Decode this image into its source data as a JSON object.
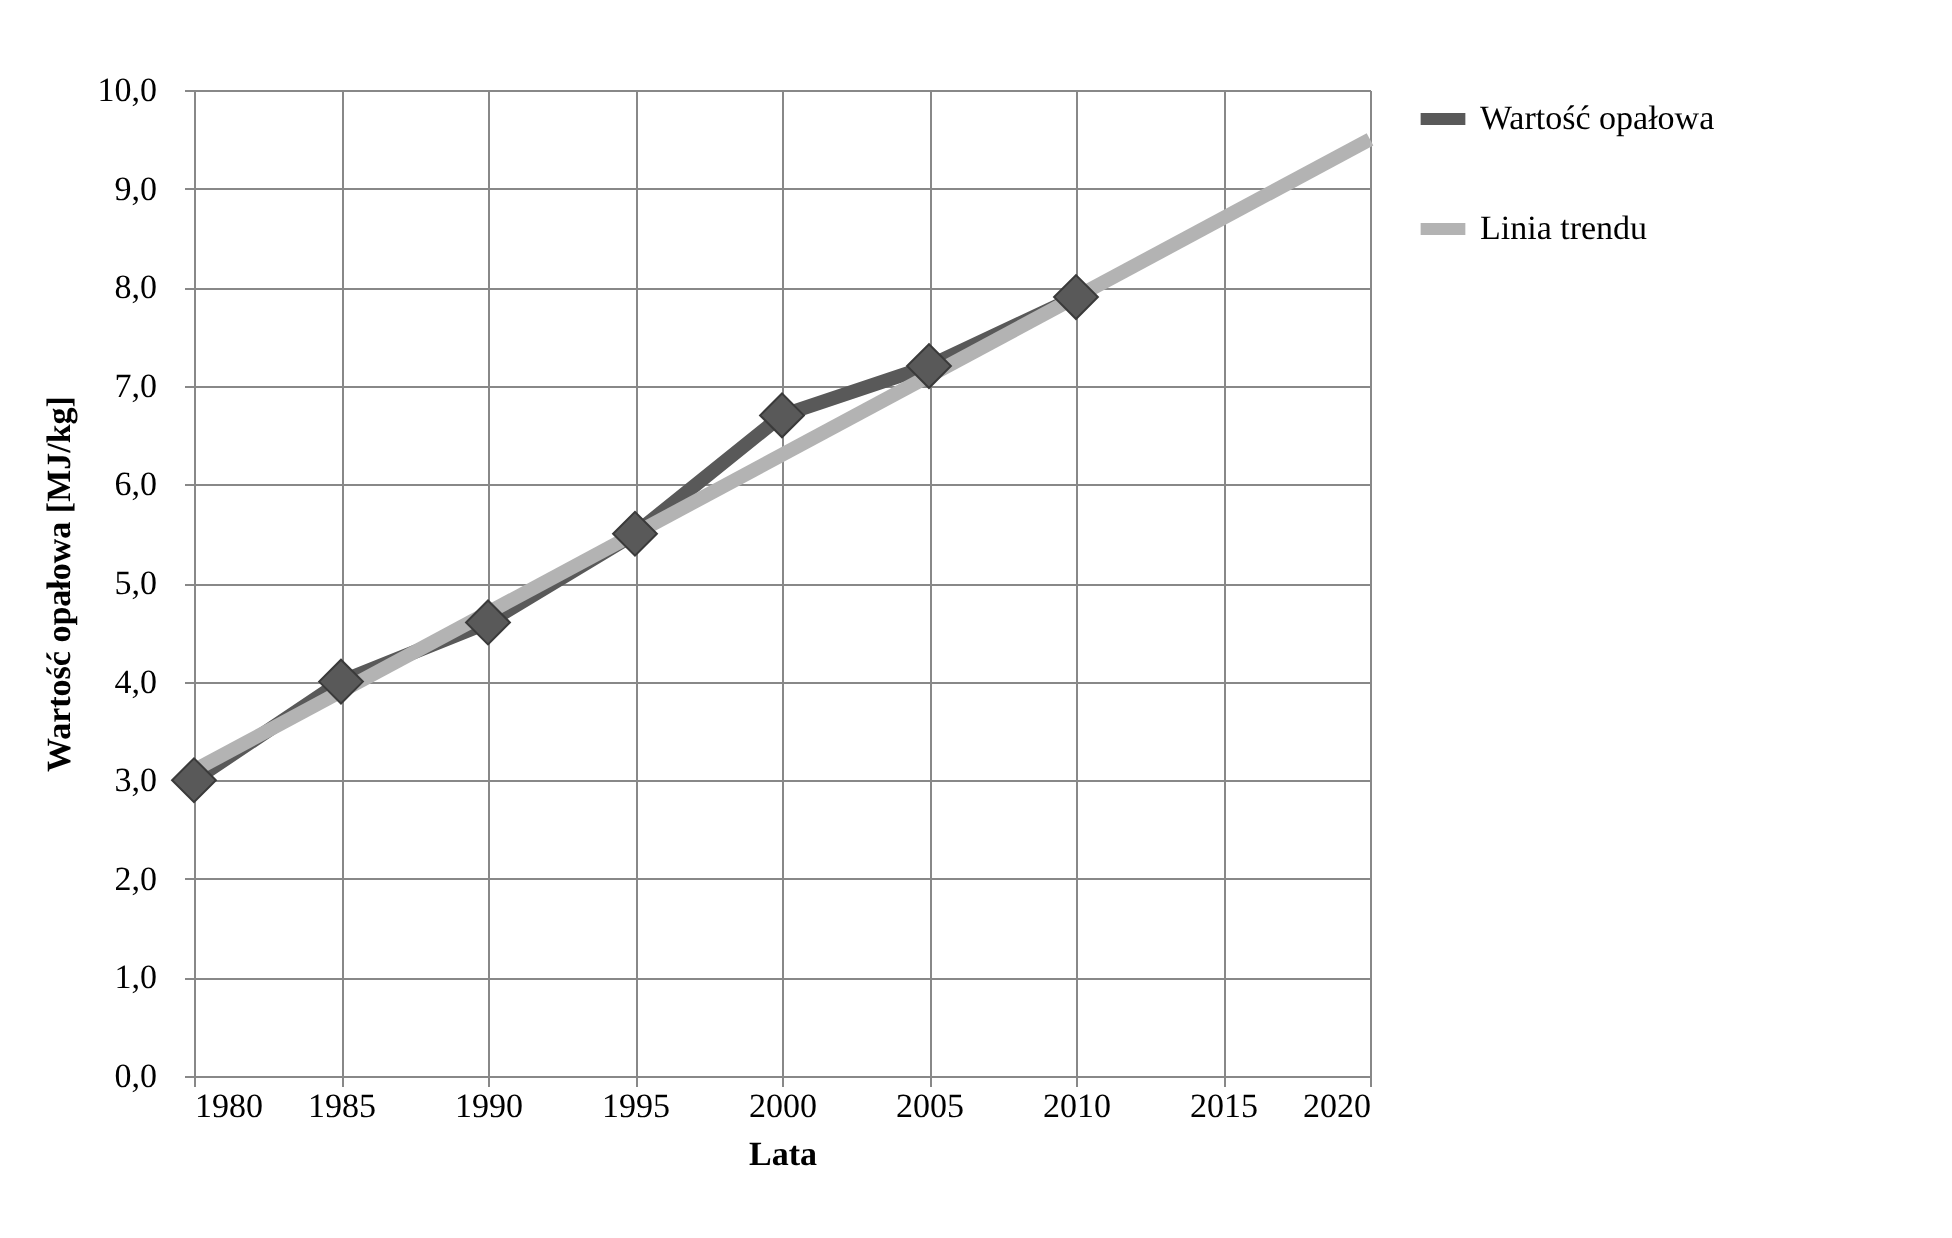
{
  "chart_data": {
    "type": "line",
    "xlabel": "Lata",
    "ylabel": "Wartość opałowa [MJ/kg]",
    "x": [
      1980,
      1985,
      1990,
      1995,
      2000,
      2005,
      2010
    ],
    "series": [
      {
        "name": "Wartość opałowa",
        "color": "#595959",
        "marker": "diamond",
        "values": [
          3.0,
          4.0,
          4.6,
          5.5,
          6.7,
          7.2,
          7.9
        ]
      },
      {
        "name": "Linia trendu",
        "color": "#b3b3b3",
        "marker": "none",
        "x": [
          1980,
          2020
        ],
        "values": [
          3.1,
          9.5
        ]
      }
    ],
    "xlim": [
      1980,
      2020
    ],
    "xticks": [
      1980,
      1985,
      1990,
      1995,
      2000,
      2005,
      2010,
      2015,
      2020
    ],
    "ylim": [
      0,
      10
    ],
    "yticks": [
      {
        "value": 0,
        "label": "0,0"
      },
      {
        "value": 1,
        "label": "1,0"
      },
      {
        "value": 2,
        "label": "2,0"
      },
      {
        "value": 3,
        "label": "3,0"
      },
      {
        "value": 4,
        "label": "4,0"
      },
      {
        "value": 5,
        "label": "5,0"
      },
      {
        "value": 6,
        "label": "6,0"
      },
      {
        "value": 7,
        "label": "7,0"
      },
      {
        "value": 8,
        "label": "8,0"
      },
      {
        "value": 9,
        "label": "9,0"
      },
      {
        "value": 10,
        "label": "10,0"
      }
    ],
    "grid": true,
    "legend": "right"
  }
}
